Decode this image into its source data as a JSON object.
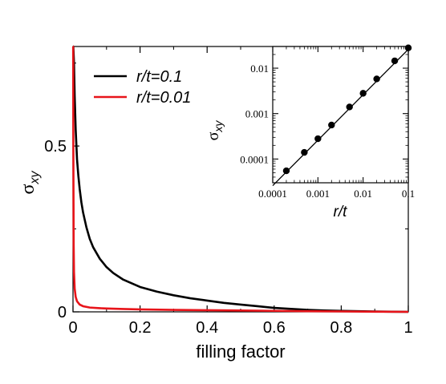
{
  "chart_data": [
    {
      "type": "line",
      "xlabel": "filling factor",
      "ylabel_symbol": "σ",
      "ylabel_sub": "xy",
      "xlim": [
        0,
        1
      ],
      "ylim": [
        0,
        0.8
      ],
      "x_ticks": [
        0,
        0.2,
        0.4,
        0.6,
        0.8,
        1
      ],
      "x_tick_labels": [
        "0",
        "0.2",
        "0.4",
        "0.6",
        "0.8",
        "1"
      ],
      "y_ticks": [
        0,
        0.5
      ],
      "y_tick_labels": [
        "0",
        "0.5"
      ],
      "grid": false,
      "legend_position": "top-left",
      "series": [
        {
          "name": "r/t=0.1",
          "color": "#000000",
          "x": [
            0.001,
            0.003,
            0.005,
            0.008,
            0.012,
            0.016,
            0.02,
            0.025,
            0.03,
            0.04,
            0.05,
            0.06,
            0.08,
            0.1,
            0.12,
            0.15,
            0.2,
            0.25,
            0.3,
            0.35,
            0.4,
            0.45,
            0.5,
            0.55,
            0.6,
            0.65,
            0.7,
            0.75,
            0.8,
            0.85,
            0.9,
            0.95,
            1.0
          ],
          "y": [
            0.8,
            0.75,
            0.65,
            0.55,
            0.46,
            0.41,
            0.37,
            0.33,
            0.3,
            0.255,
            0.22,
            0.195,
            0.16,
            0.135,
            0.117,
            0.097,
            0.075,
            0.061,
            0.05,
            0.041,
            0.034,
            0.027,
            0.022,
            0.017,
            0.012,
            0.009,
            0.006,
            0.004,
            0.003,
            0.002,
            0.001,
            0.0005,
            0.0
          ]
        },
        {
          "name": "r/t=0.01",
          "color": "#e8141a",
          "x": [
            0.0005,
            0.001,
            0.002,
            0.003,
            0.005,
            0.008,
            0.012,
            0.02,
            0.03,
            0.05,
            0.08,
            0.1,
            0.15,
            0.2,
            0.3,
            0.4,
            0.5,
            0.6,
            0.7,
            0.8,
            0.9,
            1.0
          ],
          "y": [
            0.8,
            0.5,
            0.2,
            0.12,
            0.07,
            0.045,
            0.032,
            0.022,
            0.017,
            0.013,
            0.011,
            0.01,
            0.0085,
            0.0075,
            0.006,
            0.005,
            0.004,
            0.003,
            0.002,
            0.0012,
            0.0005,
            0.0
          ]
        }
      ]
    },
    {
      "type": "scatter",
      "title": "",
      "xlabel": "r/t",
      "ylabel_symbol": "σ",
      "ylabel_sub": "xy",
      "x_scale": "log",
      "y_scale": "log",
      "xlim": [
        0.0001,
        0.1
      ],
      "ylim": [
        3e-05,
        0.03
      ],
      "x_tick_labels": [
        "0.0001",
        "0.001",
        "0.01",
        "0.1"
      ],
      "x_ticks": [
        0.0001,
        0.001,
        0.01,
        0.1
      ],
      "y_tick_labels": [
        "0.0001",
        "0.001",
        "0.01"
      ],
      "y_ticks": [
        0.0001,
        0.001,
        0.01
      ],
      "fit_line": {
        "x": [
          0.0001,
          0.1
        ],
        "y": [
          2.6e-05,
          0.026
        ]
      },
      "series": [
        {
          "color": "#000000",
          "x": [
            0.0002,
            0.0005,
            0.001,
            0.002,
            0.005,
            0.01,
            0.02,
            0.05,
            0.1
          ],
          "y": [
            5.5e-05,
            0.00014,
            0.00028,
            0.00056,
            0.0014,
            0.0028,
            0.0058,
            0.0145,
            0.028
          ]
        }
      ]
    }
  ]
}
